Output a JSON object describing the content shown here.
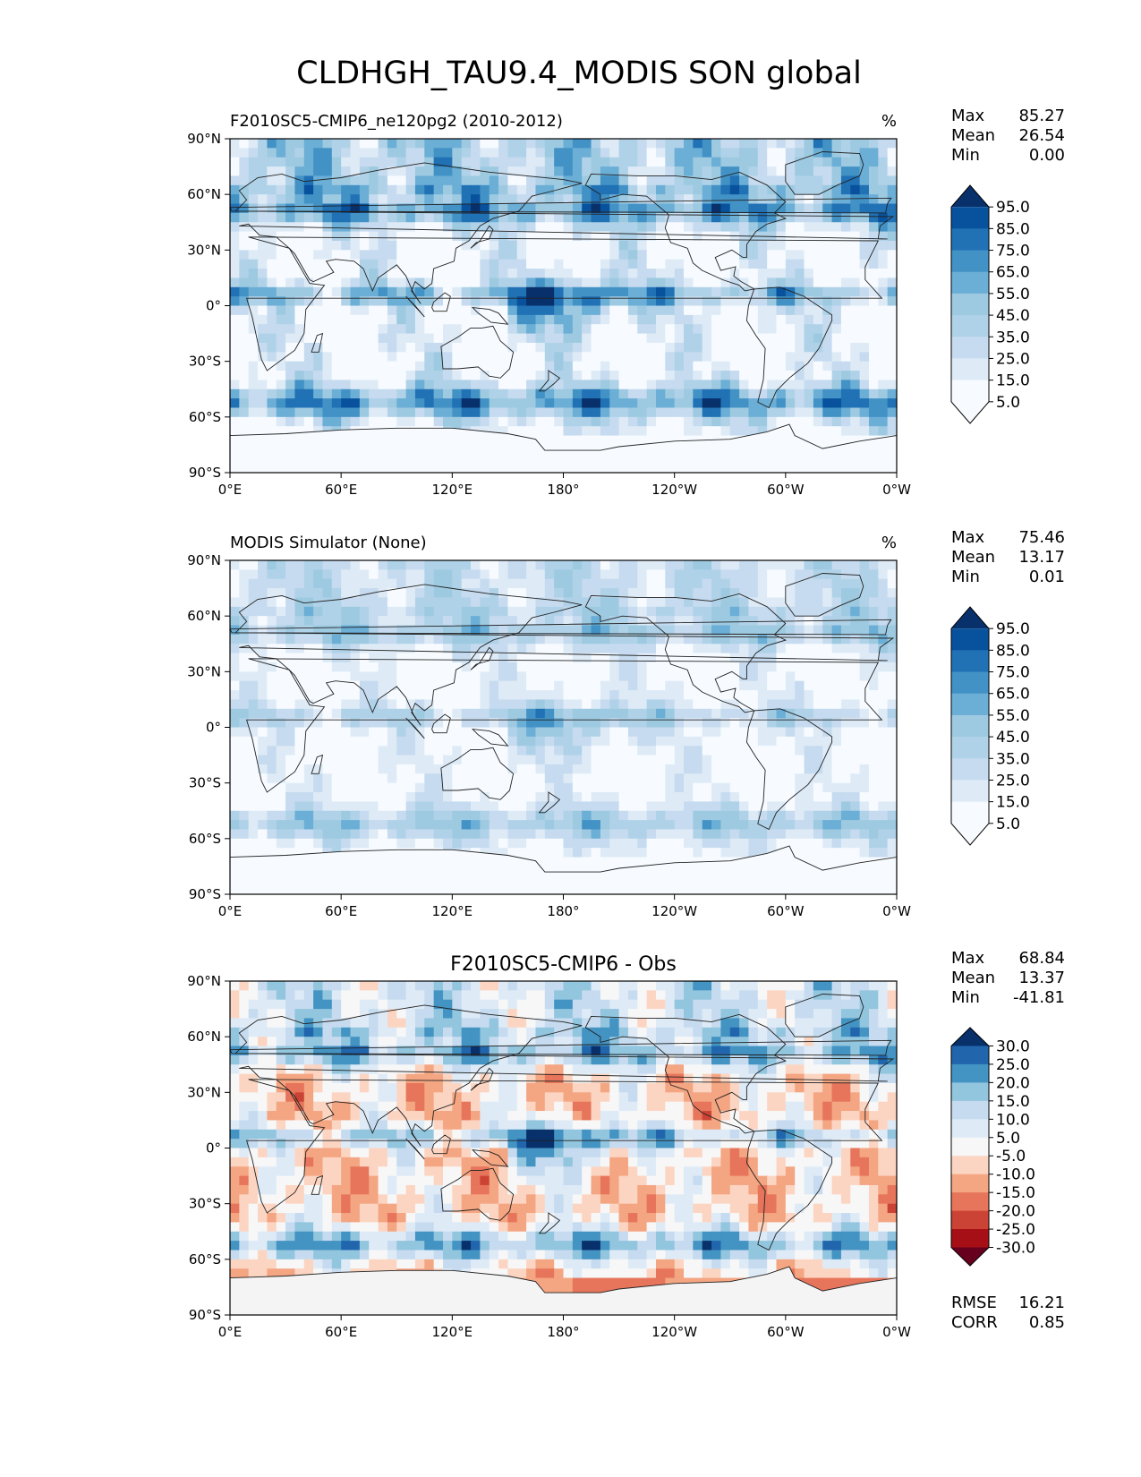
{
  "figure": {
    "title": "CLDHGH_TAU9.4_MODIS SON global"
  },
  "colors": {
    "blues": [
      "#f7fbff",
      "#deebf7",
      "#c6dbef",
      "#b0d2e8",
      "#9ecae1",
      "#6baed6",
      "#4292c6",
      "#2171b5",
      "#08519c",
      "#08306b"
    ],
    "diverging": [
      "#67001f",
      "#a50f15",
      "#cb4335",
      "#e6755b",
      "#f4a582",
      "#fcd5c2",
      "#f7f7f7",
      "#deebf7",
      "#c6dbef",
      "#92c5de",
      "#4393c3",
      "#2166ac",
      "#08306b"
    ]
  },
  "coastline_note": "Continents drawn as simplified outlines",
  "chart_data": [
    {
      "type": "heatmap",
      "panel": "test",
      "title": "F2010SC5-CMIP6_ne120pg2 (2010-2012)",
      "units": "%",
      "stats": {
        "max_label": "Max",
        "max": "85.27",
        "mean_label": "Mean",
        "mean": "26.54",
        "min_label": "Min",
        "min": "0.00"
      },
      "colorbar": {
        "levels": [
          "95.0",
          "85.0",
          "75.0",
          "65.0",
          "55.0",
          "45.0",
          "35.0",
          "25.0",
          "15.0",
          "5.0"
        ],
        "extend": "both"
      },
      "x_ticks": [
        "0°E",
        "60°E",
        "120°E",
        "180°",
        "120°W",
        "60°W",
        "0°W"
      ],
      "x_range": [
        0,
        360
      ],
      "y_ticks": [
        "90°N",
        "60°N",
        "30°N",
        "0°",
        "30°S",
        "60°S",
        "90°S"
      ],
      "y_range": [
        -90,
        90
      ]
    },
    {
      "type": "heatmap",
      "panel": "reference",
      "title": "MODIS Simulator (None)",
      "units": "%",
      "stats": {
        "max_label": "Max",
        "max": "75.46",
        "mean_label": "Mean",
        "mean": "13.17",
        "min_label": "Min",
        "min": "0.01"
      },
      "colorbar": {
        "levels": [
          "95.0",
          "85.0",
          "75.0",
          "65.0",
          "55.0",
          "45.0",
          "35.0",
          "25.0",
          "15.0",
          "5.0"
        ],
        "extend": "both"
      },
      "x_ticks": [
        "0°E",
        "60°E",
        "120°E",
        "180°",
        "120°W",
        "60°W",
        "0°W"
      ],
      "x_range": [
        0,
        360
      ],
      "y_ticks": [
        "90°N",
        "60°N",
        "30°N",
        "0°",
        "30°S",
        "60°S",
        "90°S"
      ],
      "y_range": [
        -90,
        90
      ]
    },
    {
      "type": "heatmap",
      "panel": "difference",
      "title": "F2010SC5-CMIP6 - Obs",
      "units": "",
      "stats": {
        "max_label": "Max",
        "max": "68.84",
        "mean_label": "Mean",
        "mean": "13.37",
        "min_label": "Min",
        "min": "-41.81"
      },
      "metrics": {
        "rmse_label": "RMSE",
        "rmse": "16.21",
        "corr_label": "CORR",
        "corr": "0.85"
      },
      "colorbar": {
        "levels": [
          "30.0",
          "25.0",
          "20.0",
          "15.0",
          "10.0",
          "5.0",
          "-5.0",
          "-10.0",
          "-15.0",
          "-20.0",
          "-25.0",
          "-30.0"
        ],
        "extend": "both"
      },
      "x_ticks": [
        "0°E",
        "60°E",
        "120°E",
        "180°",
        "120°W",
        "60°W",
        "0°W"
      ],
      "x_range": [
        0,
        360
      ],
      "y_ticks": [
        "90°N",
        "60°N",
        "30°N",
        "0°",
        "30°S",
        "60°S",
        "90°S"
      ],
      "y_range": [
        -90,
        90
      ]
    }
  ]
}
